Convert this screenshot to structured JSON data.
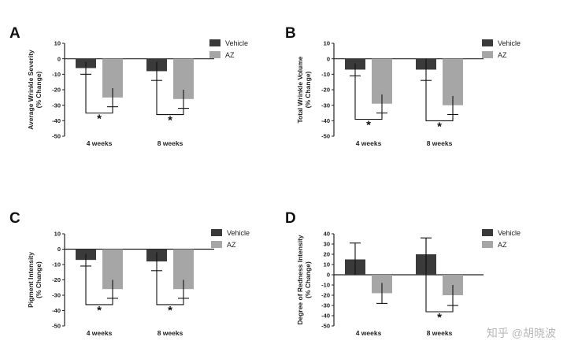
{
  "chart_data": [
    {
      "panel": "A",
      "type": "bar",
      "ylabel": "Average Wrinkle Severity",
      "ylabel2": "(% Change)",
      "ylim": [
        -50,
        10
      ],
      "yticks": [
        10,
        0,
        -10,
        -20,
        -30,
        -40,
        -50
      ],
      "categories": [
        "4 weeks",
        "8 weeks"
      ],
      "series": [
        {
          "name": "Vehicle",
          "values": [
            -6,
            -8
          ],
          "errors": [
            4,
            6
          ]
        },
        {
          "name": "AZ",
          "values": [
            -25,
            -26
          ],
          "errors": [
            6,
            6
          ]
        }
      ],
      "annotations": [
        "*",
        "*"
      ]
    },
    {
      "panel": "B",
      "type": "bar",
      "ylabel": "Total Wrinkle Volume",
      "ylabel2": "(% Change)",
      "ylim": [
        -50,
        10
      ],
      "yticks": [
        10,
        0,
        -10,
        -20,
        -30,
        -40,
        -50
      ],
      "categories": [
        "4 weeks",
        "8 weeks"
      ],
      "series": [
        {
          "name": "Vehicle",
          "values": [
            -7,
            -7
          ],
          "errors": [
            4,
            7
          ]
        },
        {
          "name": "AZ",
          "values": [
            -29,
            -30
          ],
          "errors": [
            6,
            6
          ]
        }
      ],
      "annotations": [
        "*",
        "*"
      ]
    },
    {
      "panel": "C",
      "type": "bar",
      "ylabel": "Pigment Intensity",
      "ylabel2": "(% Change)",
      "ylim": [
        -50,
        10
      ],
      "yticks": [
        10,
        0,
        -10,
        -20,
        -30,
        -40,
        -50
      ],
      "categories": [
        "4 weeks",
        "8 weeks"
      ],
      "series": [
        {
          "name": "Vehicle",
          "values": [
            -7,
            -8
          ],
          "errors": [
            4,
            6
          ]
        },
        {
          "name": "AZ",
          "values": [
            -26,
            -26
          ],
          "errors": [
            6,
            6
          ]
        }
      ],
      "annotations": [
        "*",
        "*"
      ]
    },
    {
      "panel": "D",
      "type": "bar",
      "ylabel": "Degree of Redness Intensity",
      "ylabel2": "(% Change)",
      "ylim": [
        -50,
        40
      ],
      "yticks": [
        40,
        30,
        20,
        10,
        0,
        -10,
        -20,
        -30,
        -40,
        -50
      ],
      "categories": [
        "4 weeks",
        "8 weeks"
      ],
      "series": [
        {
          "name": "Vehicle",
          "values": [
            15,
            20
          ],
          "errors": [
            16,
            16
          ]
        },
        {
          "name": "AZ",
          "values": [
            -18,
            -20
          ],
          "errors": [
            10,
            10
          ]
        }
      ],
      "annotations": [
        "",
        "*"
      ]
    }
  ],
  "legend": {
    "vehicle": "Vehicle",
    "az": "AZ"
  },
  "colors": {
    "vehicle": "#3a3a3a",
    "az": "#a6a6a6",
    "axis": "#222222"
  },
  "watermark": "知乎 @胡晓波"
}
